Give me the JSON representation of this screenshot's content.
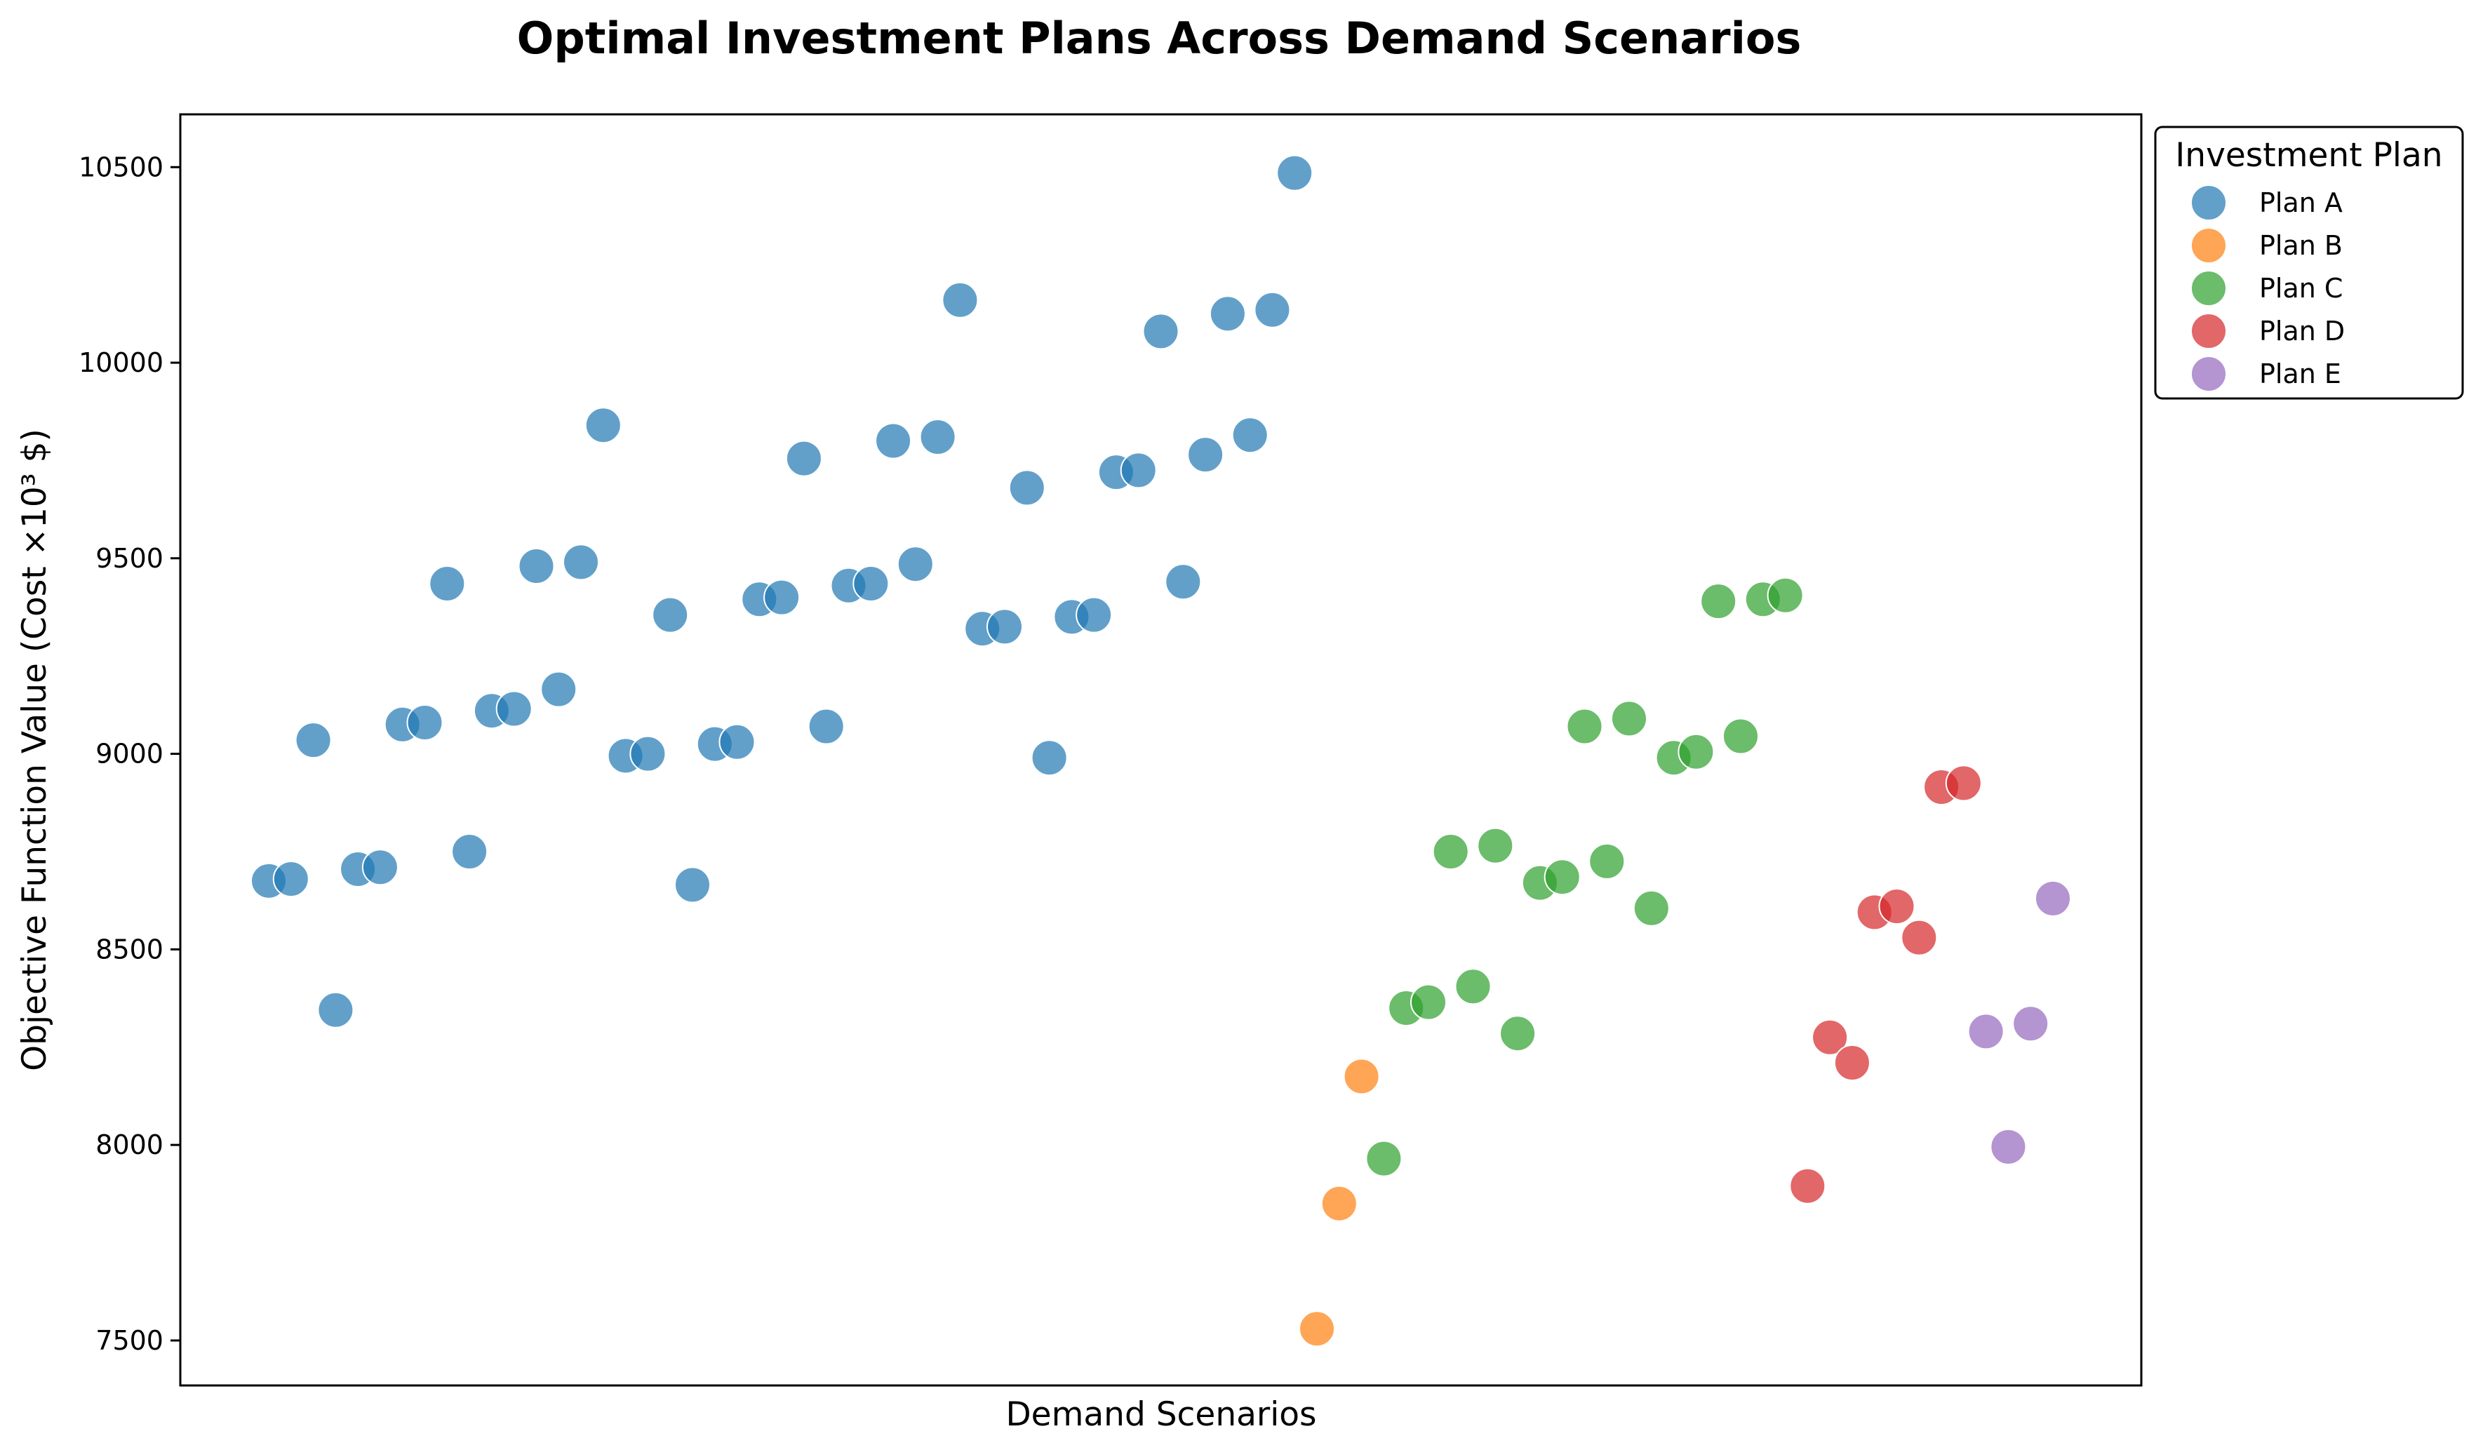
{
  "chart_data": {
    "type": "scatter",
    "title": "Optimal Investment Plans Across Demand Scenarios",
    "xlabel": "Demand Scenarios",
    "ylabel": "Objective Function Value (Cost ×10³ $)",
    "ylim": [
      7385,
      10635
    ],
    "yticks": [
      7500,
      8000,
      8500,
      9000,
      9500,
      10000,
      10500
    ],
    "x_ticks_shown": false,
    "grid": false,
    "legend": {
      "title": "Investment Plan",
      "placement": "outside-top-right"
    },
    "series": [
      {
        "name": "Plan A",
        "color": "#1f77b4",
        "y": [
          8675,
          8680,
          9035,
          8345,
          8705,
          8710,
          9075,
          9080,
          9435,
          8750,
          9110,
          9115,
          9480,
          9165,
          9490,
          9840,
          8995,
          9000,
          9355,
          8665,
          9025,
          9030,
          9395,
          9400,
          9755,
          9070,
          9430,
          9435,
          9800,
          9485,
          9810,
          10160,
          9320,
          9325,
          9680,
          8990,
          9350,
          9355,
          9720,
          9725,
          10080,
          9440,
          9765,
          10125,
          9815,
          10135,
          10485
        ]
      },
      {
        "name": "Plan B",
        "color": "#ff7f0e",
        "y": [
          7530,
          7850,
          8175
        ]
      },
      {
        "name": "Plan C",
        "color": "#2ca02c",
        "y": [
          7965,
          8350,
          8365,
          8750,
          8405,
          8765,
          8285,
          8670,
          8685,
          9070,
          8725,
          9090,
          8605,
          8990,
          9005,
          9390,
          9045,
          9395,
          9405
        ]
      },
      {
        "name": "Plan D",
        "color": "#d62728",
        "y": [
          7895,
          8275,
          8210,
          8595,
          8610,
          8530,
          8915,
          8925
        ]
      },
      {
        "name": "Plan E",
        "color": "#9467bd",
        "y": [
          8290,
          7995,
          8310,
          8630
        ]
      }
    ]
  }
}
